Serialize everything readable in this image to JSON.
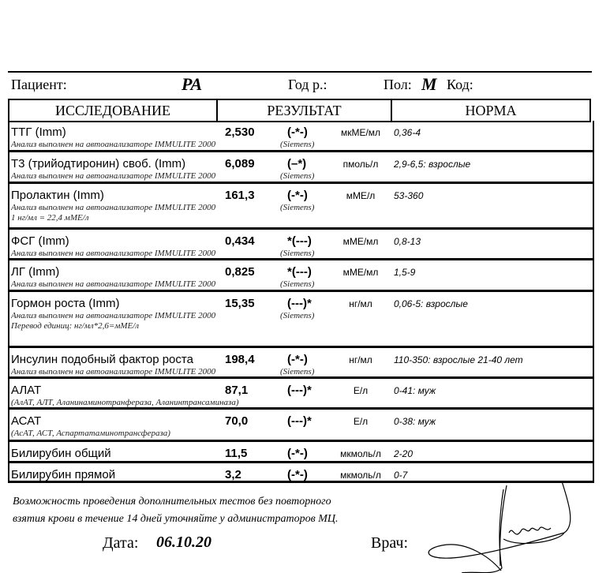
{
  "header": {
    "patient_label": "Пациент:",
    "patient_value": "РА",
    "birth_label": "Год р.:",
    "sex_label": "Пол:",
    "sex_value": "М",
    "code_label": "Код:"
  },
  "table": {
    "columns": [
      "ИССЛЕДОВАНИЕ",
      "РЕЗУЛЬТАТ",
      "НОРМА"
    ],
    "rows": [
      {
        "name": "ТТГ (Imm)",
        "result": "2,530",
        "flag": "(-*-)",
        "unit": "мкМЕ/мл",
        "norm": "0,36-4",
        "notes": [
          "Анализ выполнен на автоанализаторе IMMULITE  2000"
        ],
        "maker": "(Siemens)"
      },
      {
        "name": "Т3 (трийодтиронин) своб. (Imm)",
        "result": "6,089",
        "flag": "(–*)",
        "unit": "пмоль/л",
        "norm": "2,9-6,5:  взрослые",
        "notes": [
          "Анализ выполнен на автоанализаторе IMMULITE  2000"
        ],
        "maker": "(Siemens)"
      },
      {
        "name": "Пролактин (Imm)",
        "result": "161,3",
        "flag": "(-*-)",
        "unit": "мМЕ/л",
        "norm": "53-360",
        "notes": [
          "Анализ выполнен на автоанализаторе IMMULITE  2000",
          "1 нг/мл = 22,4 мМЕ/л"
        ],
        "maker": "(Siemens)"
      },
      {
        "name": "ФСГ (Imm)",
        "result": "0,434",
        "flag": "*(---)",
        "unit": "мМЕ/мл",
        "norm": "0,8-13",
        "notes": [
          "Анализ выполнен на автоанализаторе IMMULITE  2000"
        ],
        "maker": "(Siemens)"
      },
      {
        "name": "ЛГ (Imm)",
        "result": "0,825",
        "flag": "*(---)",
        "unit": "мМЕ/мл",
        "norm": "1,5-9",
        "notes": [
          "Анализ выполнен на автоанализаторе IMMULITE  2000"
        ],
        "maker": "(Siemens)"
      },
      {
        "name": "Гормон роста (Imm)",
        "result": "15,35",
        "flag": "(---)*",
        "unit": "нг/мл",
        "norm": "0,06-5: взрослые",
        "notes": [
          "Анализ выполнен на автоанализаторе IMMULITE  2000",
          "Перевод единиц:    нг/мл*2,6=мМЕ/л"
        ],
        "maker": "(Siemens)"
      },
      {
        "name": "Инсулин подобный фактор роста",
        "result": "198,4",
        "flag": "(-*-)",
        "unit": "нг/мл",
        "norm": "110-350: взрослые 21-40 лет",
        "notes": [
          "Анализ выполнен на автоанализаторе IMMULITE  2000"
        ],
        "maker": "(Siemens)"
      },
      {
        "name": "АЛАТ",
        "result": "87,1",
        "flag": "(---)*",
        "unit": "Е/л",
        "norm": "0-41: муж",
        "notes": [
          "(АлАТ,    АЛТ,    Аланинаминотранфераза,    Аланинтрансаминаза)"
        ]
      },
      {
        "name": "АСАТ",
        "result": "70,0",
        "flag": "(---)*",
        "unit": "Е/л",
        "norm": "0-38: муж",
        "notes": [
          "(АсАТ,    АСТ,    Аспартатаминотрансфераза)"
        ]
      },
      {
        "name": "Билирубин общий",
        "result": "11,5",
        "flag": "(-*-)",
        "unit": "мкмоль/л",
        "norm": "2-20",
        "notes": []
      },
      {
        "name": "Билирубин прямой",
        "result": "3,2",
        "flag": "(-*-)",
        "unit": "мкмоль/л",
        "norm": "0-7",
        "notes": []
      }
    ]
  },
  "footer": {
    "note_line1": "Возможность проведения дополнительных тестов без повторного",
    "note_line2": "взятия крови в течение 14  дней уточняйте у администраторов МЦ.",
    "date_label": "Дата:",
    "date_value": "06.10.20",
    "doctor_label": "Врач:"
  }
}
